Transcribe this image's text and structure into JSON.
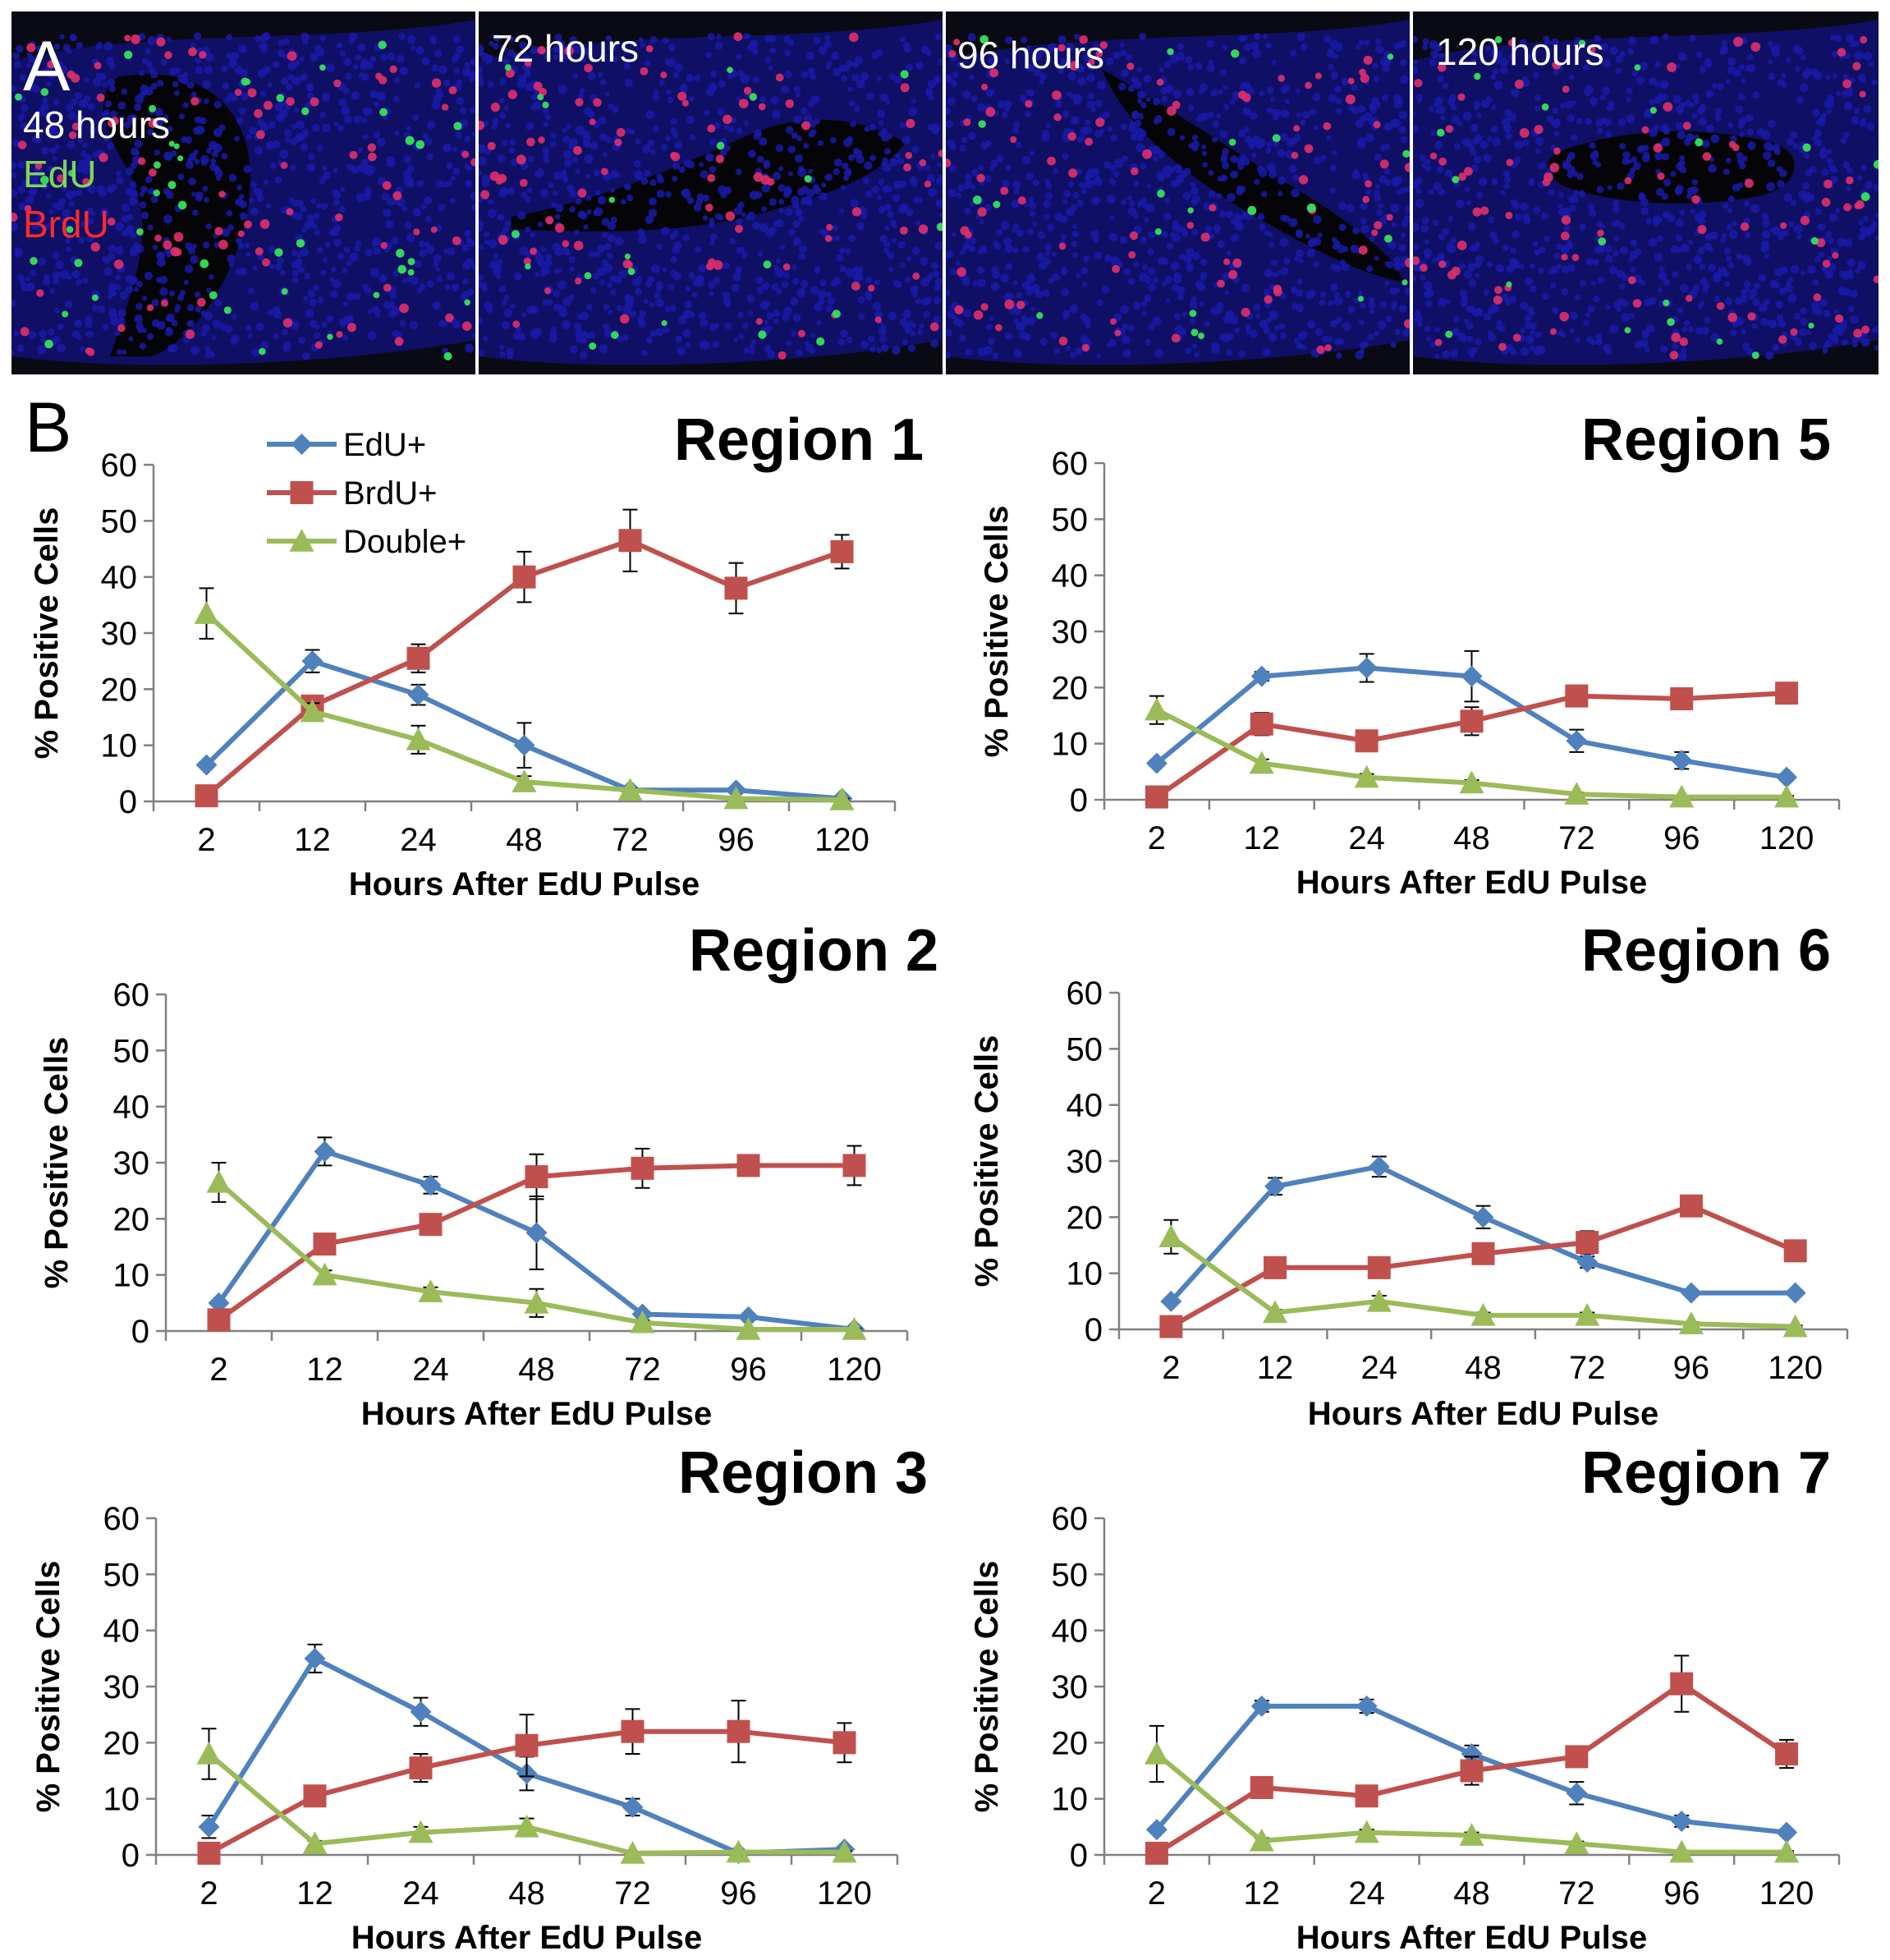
{
  "panel_a": {
    "letter": "A",
    "images": [
      {
        "label": "48 hours",
        "legend": [
          {
            "text": "EdU",
            "color": "#7fd65a"
          },
          {
            "text": "BrdU",
            "color": "#ff2a2a"
          }
        ]
      },
      {
        "label": "72 hours"
      },
      {
        "label": "96 hours"
      },
      {
        "label": "120 hours"
      }
    ]
  },
  "panel_b": {
    "letter": "B"
  },
  "colors": {
    "edu": "#4f81bd",
    "brdu": "#c0504d",
    "double": "#9bbb59",
    "tissue_bg": "#0a0a14",
    "nuclei": "#1a1aa8"
  },
  "chart_data": [
    {
      "type": "line",
      "title": "Region 1",
      "xlabel": "Hours After EdU Pulse",
      "ylabel": "% Positive Cells",
      "categories": [
        "2",
        "12",
        "24",
        "48",
        "72",
        "96",
        "120"
      ],
      "yticks": [
        "0",
        "10",
        "20",
        "30",
        "40",
        "50",
        "60"
      ],
      "ylim": [
        0,
        60
      ],
      "legend": [
        "EdU+",
        "BrdU+",
        "Double+"
      ],
      "series": [
        {
          "name": "EdU+",
          "values": [
            6.5,
            25,
            19,
            10,
            2,
            2,
            0.5
          ],
          "errors": [
            0.5,
            2,
            1.8,
            4,
            0.4,
            0.4,
            0.2
          ]
        },
        {
          "name": "BrdU+",
          "values": [
            1,
            17,
            25.5,
            40,
            46.5,
            38,
            44.5
          ],
          "errors": [
            0.4,
            1.5,
            2.5,
            4.5,
            5.5,
            4.5,
            3
          ]
        },
        {
          "name": "Double+",
          "values": [
            33.5,
            16,
            11,
            3.5,
            2,
            0.5,
            0.3
          ],
          "errors": [
            4.5,
            1.5,
            2.5,
            1,
            0.3,
            0.2,
            0.2
          ]
        }
      ]
    },
    {
      "type": "line",
      "title": "Region 5",
      "xlabel": "Hours After EdU Pulse",
      "ylabel": "% Positive Cells",
      "categories": [
        "2",
        "12",
        "24",
        "48",
        "72",
        "96",
        "120"
      ],
      "yticks": [
        "0",
        "10",
        "20",
        "30",
        "40",
        "50",
        "60"
      ],
      "ylim": [
        0,
        60
      ],
      "series": [
        {
          "name": "EdU+",
          "values": [
            6.5,
            22,
            23.5,
            22,
            10.5,
            7,
            4
          ],
          "errors": [
            0.4,
            0.8,
            2.5,
            4.5,
            2,
            1.5,
            0.5
          ]
        },
        {
          "name": "BrdU+",
          "values": [
            0.5,
            13.5,
            10.5,
            14,
            18.5,
            18,
            19
          ],
          "errors": [
            0.2,
            2,
            1.5,
            2.5,
            1,
            1,
            0.8
          ]
        },
        {
          "name": "Double+",
          "values": [
            16,
            6.5,
            4,
            3,
            1,
            0.5,
            0.5
          ],
          "errors": [
            2.5,
            0.7,
            0.6,
            0.5,
            0.3,
            0.2,
            0.2
          ]
        }
      ]
    },
    {
      "type": "line",
      "title": "Region 2",
      "xlabel": "Hours After EdU Pulse",
      "ylabel": "% Positive Cells",
      "categories": [
        "2",
        "12",
        "24",
        "48",
        "72",
        "96",
        "120"
      ],
      "yticks": [
        "0",
        "10",
        "20",
        "30",
        "40",
        "50",
        "60"
      ],
      "ylim": [
        0,
        60
      ],
      "series": [
        {
          "name": "EdU+",
          "values": [
            5,
            32,
            26,
            17.5,
            3,
            2.5,
            0.3
          ],
          "errors": [
            0.4,
            2.5,
            1.5,
            6.5,
            0.5,
            0.4,
            0.2
          ]
        },
        {
          "name": "BrdU+",
          "values": [
            2,
            15.5,
            19,
            27.5,
            29,
            29.5,
            29.5
          ],
          "errors": [
            0.4,
            1.5,
            1.5,
            4,
            3.5,
            1.5,
            3.5
          ]
        },
        {
          "name": "Double+",
          "values": [
            26.5,
            10,
            7,
            5,
            1.5,
            0.3,
            0.3
          ],
          "errors": [
            3.5,
            0.8,
            0.8,
            2.5,
            0.4,
            0.2,
            0.2
          ]
        }
      ]
    },
    {
      "type": "line",
      "title": "Region 6",
      "xlabel": "Hours After EdU Pulse",
      "ylabel": "% Positive Cells",
      "categories": [
        "2",
        "12",
        "24",
        "48",
        "72",
        "96",
        "120"
      ],
      "yticks": [
        "0",
        "10",
        "20",
        "30",
        "40",
        "50",
        "60"
      ],
      "ylim": [
        0,
        60
      ],
      "series": [
        {
          "name": "EdU+",
          "values": [
            5,
            25.5,
            29,
            20,
            12,
            6.5,
            6.5
          ],
          "errors": [
            0.4,
            1.5,
            1.8,
            2,
            1,
            0.5,
            0.5
          ]
        },
        {
          "name": "BrdU+",
          "values": [
            0.5,
            11,
            11,
            13.5,
            15.5,
            22,
            14
          ],
          "errors": [
            0.2,
            1,
            1,
            1,
            2,
            1,
            1
          ]
        },
        {
          "name": "Double+",
          "values": [
            16.5,
            3,
            5,
            2.5,
            2.5,
            1,
            0.5
          ],
          "errors": [
            3,
            0.5,
            1,
            0.5,
            0.5,
            0.3,
            0.2
          ]
        }
      ]
    },
    {
      "type": "line",
      "title": "Region 3",
      "xlabel": "Hours After EdU Pulse",
      "ylabel": "% Positive Cells",
      "categories": [
        "2",
        "12",
        "24",
        "48",
        "72",
        "96",
        "120"
      ],
      "yticks": [
        "0",
        "10",
        "20",
        "30",
        "40",
        "50",
        "60"
      ],
      "ylim": [
        0,
        60
      ],
      "series": [
        {
          "name": "EdU+",
          "values": [
            5,
            35,
            25.5,
            14.5,
            8.5,
            0.3,
            1
          ],
          "errors": [
            2,
            2.5,
            2.5,
            3,
            1.5,
            0.3,
            0.3
          ]
        },
        {
          "name": "BrdU+",
          "values": [
            0.3,
            10.5,
            15.5,
            19.5,
            22,
            22,
            20
          ],
          "errors": [
            0.2,
            1.5,
            2.5,
            5.5,
            4,
            5.5,
            3.5
          ]
        },
        {
          "name": "Double+",
          "values": [
            18,
            2,
            4,
            5,
            0.3,
            0.5,
            0.5
          ],
          "errors": [
            4.5,
            0.5,
            1,
            1.5,
            0.2,
            0.2,
            0.2
          ]
        }
      ]
    },
    {
      "type": "line",
      "title": "Region 7",
      "xlabel": "Hours After EdU Pulse",
      "ylabel": "% Positive Cells",
      "categories": [
        "2",
        "12",
        "24",
        "48",
        "72",
        "96",
        "120"
      ],
      "yticks": [
        "0",
        "10",
        "20",
        "30",
        "40",
        "50",
        "60"
      ],
      "ylim": [
        0,
        60
      ],
      "series": [
        {
          "name": "EdU+",
          "values": [
            4.5,
            26.5,
            26.5,
            18,
            11,
            6,
            4
          ],
          "errors": [
            0.4,
            1,
            1.2,
            1.5,
            2,
            1,
            0.5
          ]
        },
        {
          "name": "BrdU+",
          "values": [
            0.3,
            12,
            10.5,
            15,
            17.5,
            30.5,
            18
          ],
          "errors": [
            0.2,
            1,
            1.5,
            2.5,
            1.5,
            5,
            2.5
          ]
        },
        {
          "name": "Double+",
          "values": [
            18,
            2.5,
            4,
            3.5,
            2,
            0.5,
            0.5
          ],
          "errors": [
            5,
            0.5,
            0.5,
            0.5,
            0.4,
            0.2,
            0.2
          ]
        }
      ]
    }
  ]
}
